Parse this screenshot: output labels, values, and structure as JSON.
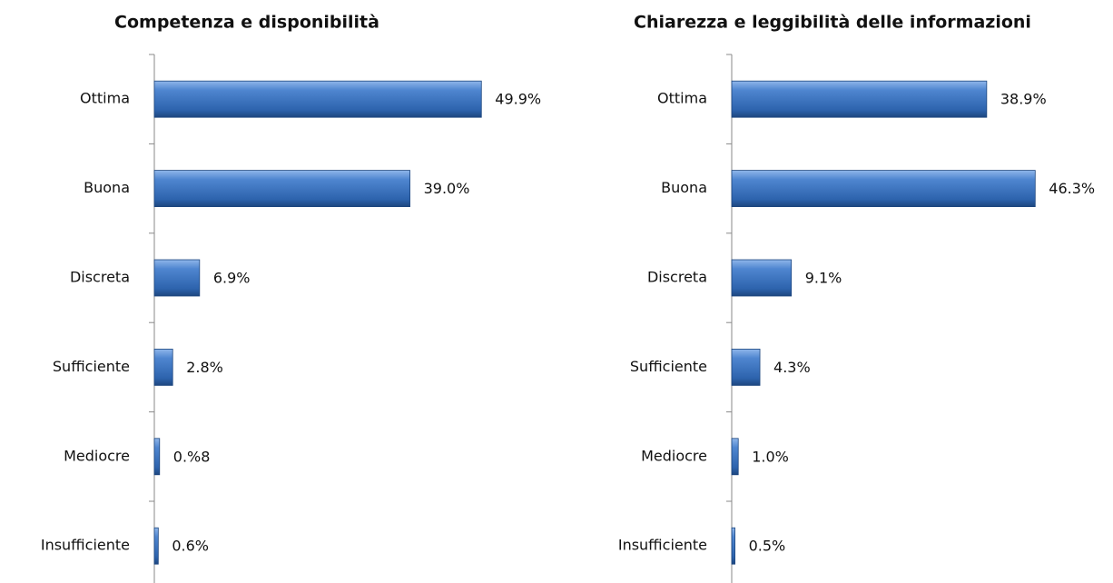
{
  "chart_data": [
    {
      "type": "bar",
      "orientation": "horizontal",
      "title": "Competenza e disponibilità",
      "categories": [
        "Ottima",
        "Buona",
        "Discreta",
        "Sufficiente",
        "Mediocre",
        "Insufficiente"
      ],
      "values": [
        49.9,
        39.0,
        6.9,
        2.8,
        0.8,
        0.6
      ],
      "value_labels": [
        "49.9%",
        "39.0%",
        "6.9%",
        "2.8%",
        "0.%8",
        "0.6%"
      ],
      "color": "#3f78c4"
    },
    {
      "type": "bar",
      "orientation": "horizontal",
      "title": "Chiarezza e leggibilità delle informazioni",
      "categories": [
        "Ottima",
        "Buona",
        "Discreta",
        "Sufficiente",
        "Mediocre",
        "Insufficiente"
      ],
      "values": [
        38.9,
        46.3,
        9.1,
        4.3,
        1.0,
        0.5
      ],
      "value_labels": [
        "38.9%",
        "46.3%",
        "9.1%",
        "4.3%",
        "1.0%",
        "0.5%"
      ],
      "color": "#3f78c4"
    }
  ]
}
